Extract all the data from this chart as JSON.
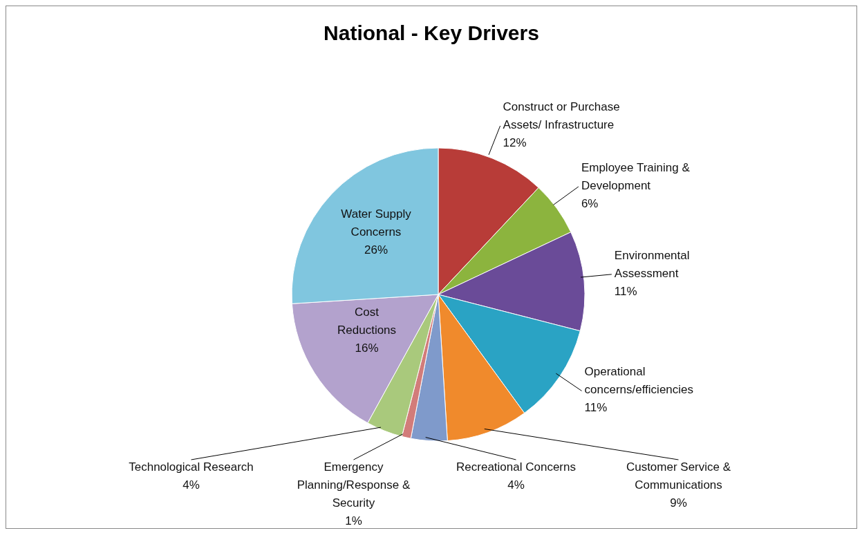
{
  "chart_data": {
    "type": "pie",
    "title": "National - Key Drivers",
    "categories": [
      "Construct or Purchase Assets/ Infrastructure",
      "Employee Training & Development",
      "Environmental Assessment",
      "Operational concerns/efficiencies",
      "Customer Service & Communications",
      "Recreational Concerns",
      "Emergency Planning/Response & Security",
      "Technological Research",
      "Cost Reductions",
      "Water Supply Concerns"
    ],
    "values": [
      12,
      6,
      11,
      11,
      9,
      4,
      1,
      4,
      16,
      26
    ],
    "value_labels": [
      "12%",
      "6%",
      "11%",
      "11%",
      "9%",
      "4%",
      "1%",
      "4%",
      "16%",
      "26%"
    ],
    "colors": [
      "#b83c38",
      "#8cb43e",
      "#6a4b98",
      "#2aa3c4",
      "#f08a2c",
      "#7f9acb",
      "#d27c7a",
      "#a9c97c",
      "#b3a2cd",
      "#80c6df"
    ]
  }
}
